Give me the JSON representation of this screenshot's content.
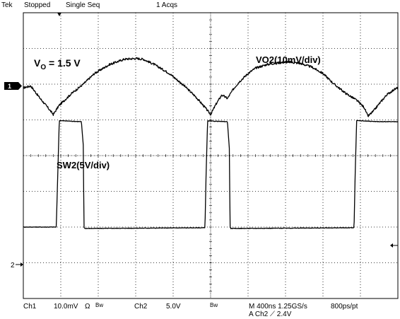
{
  "header": {
    "brand": "Tek",
    "state": "Stopped",
    "mode": "Single Seq",
    "acquisitions": "1 Acqs"
  },
  "footer": {
    "ch1_label": "Ch1",
    "ch1_scale": "10.0mV",
    "ch1_coupling": "Ω",
    "ch1_bw": "Bw",
    "ch2_label": "Ch2",
    "ch2_scale": "5.0V",
    "ch2_bw": "Bw",
    "timebase": "M 400ns 1.25GS/s",
    "record": "800ps/pt",
    "trigger": "A  Ch2  ⟋  2.4V"
  },
  "markers": {
    "ch1": "1",
    "ch2": "2"
  },
  "chart_data": {
    "type": "line",
    "x_unit": "div",
    "y_unit": "div",
    "xlim": [
      0,
      10
    ],
    "ylim": [
      0,
      8
    ],
    "grid": true,
    "annotations": [
      {
        "text": "V",
        "sub": "O",
        "rest": " = 1.5 V"
      },
      {
        "text": "VO2(10mV/div)"
      },
      {
        "text": "SW2(5V/div)"
      }
    ],
    "series": [
      {
        "name": "VO2(10mV/div)",
        "color": "#000000",
        "x": [
          0.0,
          0.2,
          0.45,
          0.65,
          0.8,
          0.95,
          1.1,
          1.3,
          1.6,
          1.9,
          2.3,
          2.7,
          3.0,
          3.2,
          3.5,
          3.9,
          4.3,
          4.6,
          4.85,
          5.0,
          5.15,
          5.3,
          5.45,
          5.6,
          5.75,
          5.9,
          6.0,
          6.2,
          6.5,
          6.8,
          7.1,
          7.4,
          7.7,
          8.0,
          8.3,
          8.6,
          8.9,
          9.1,
          9.2,
          9.35,
          9.5,
          9.7,
          9.9,
          10.0
        ],
        "y": [
          5.9,
          5.95,
          5.6,
          5.35,
          5.15,
          5.4,
          5.55,
          5.75,
          6.0,
          6.3,
          6.55,
          6.7,
          6.72,
          6.7,
          6.55,
          6.3,
          5.95,
          5.65,
          5.35,
          5.15,
          5.45,
          5.7,
          5.6,
          5.85,
          6.05,
          6.2,
          6.3,
          6.45,
          6.55,
          6.6,
          6.62,
          6.58,
          6.48,
          6.3,
          6.0,
          5.75,
          5.55,
          5.35,
          5.1,
          5.25,
          5.45,
          5.7,
          5.85,
          5.9
        ]
      },
      {
        "name": "SW2(5V/div)",
        "color": "#000000",
        "x": [
          0.0,
          0.88,
          0.92,
          0.96,
          1.55,
          1.6,
          1.62,
          1.64,
          4.85,
          4.88,
          4.92,
          5.45,
          5.5,
          5.52,
          5.54,
          8.83,
          8.86,
          8.9,
          9.5,
          10.0
        ],
        "y": [
          2.0,
          2.0,
          3.5,
          4.98,
          4.95,
          4.3,
          2.0,
          1.96,
          1.98,
          3.5,
          4.97,
          4.95,
          4.2,
          2.0,
          1.96,
          1.98,
          3.5,
          4.98,
          4.95,
          4.95
        ]
      }
    ]
  }
}
